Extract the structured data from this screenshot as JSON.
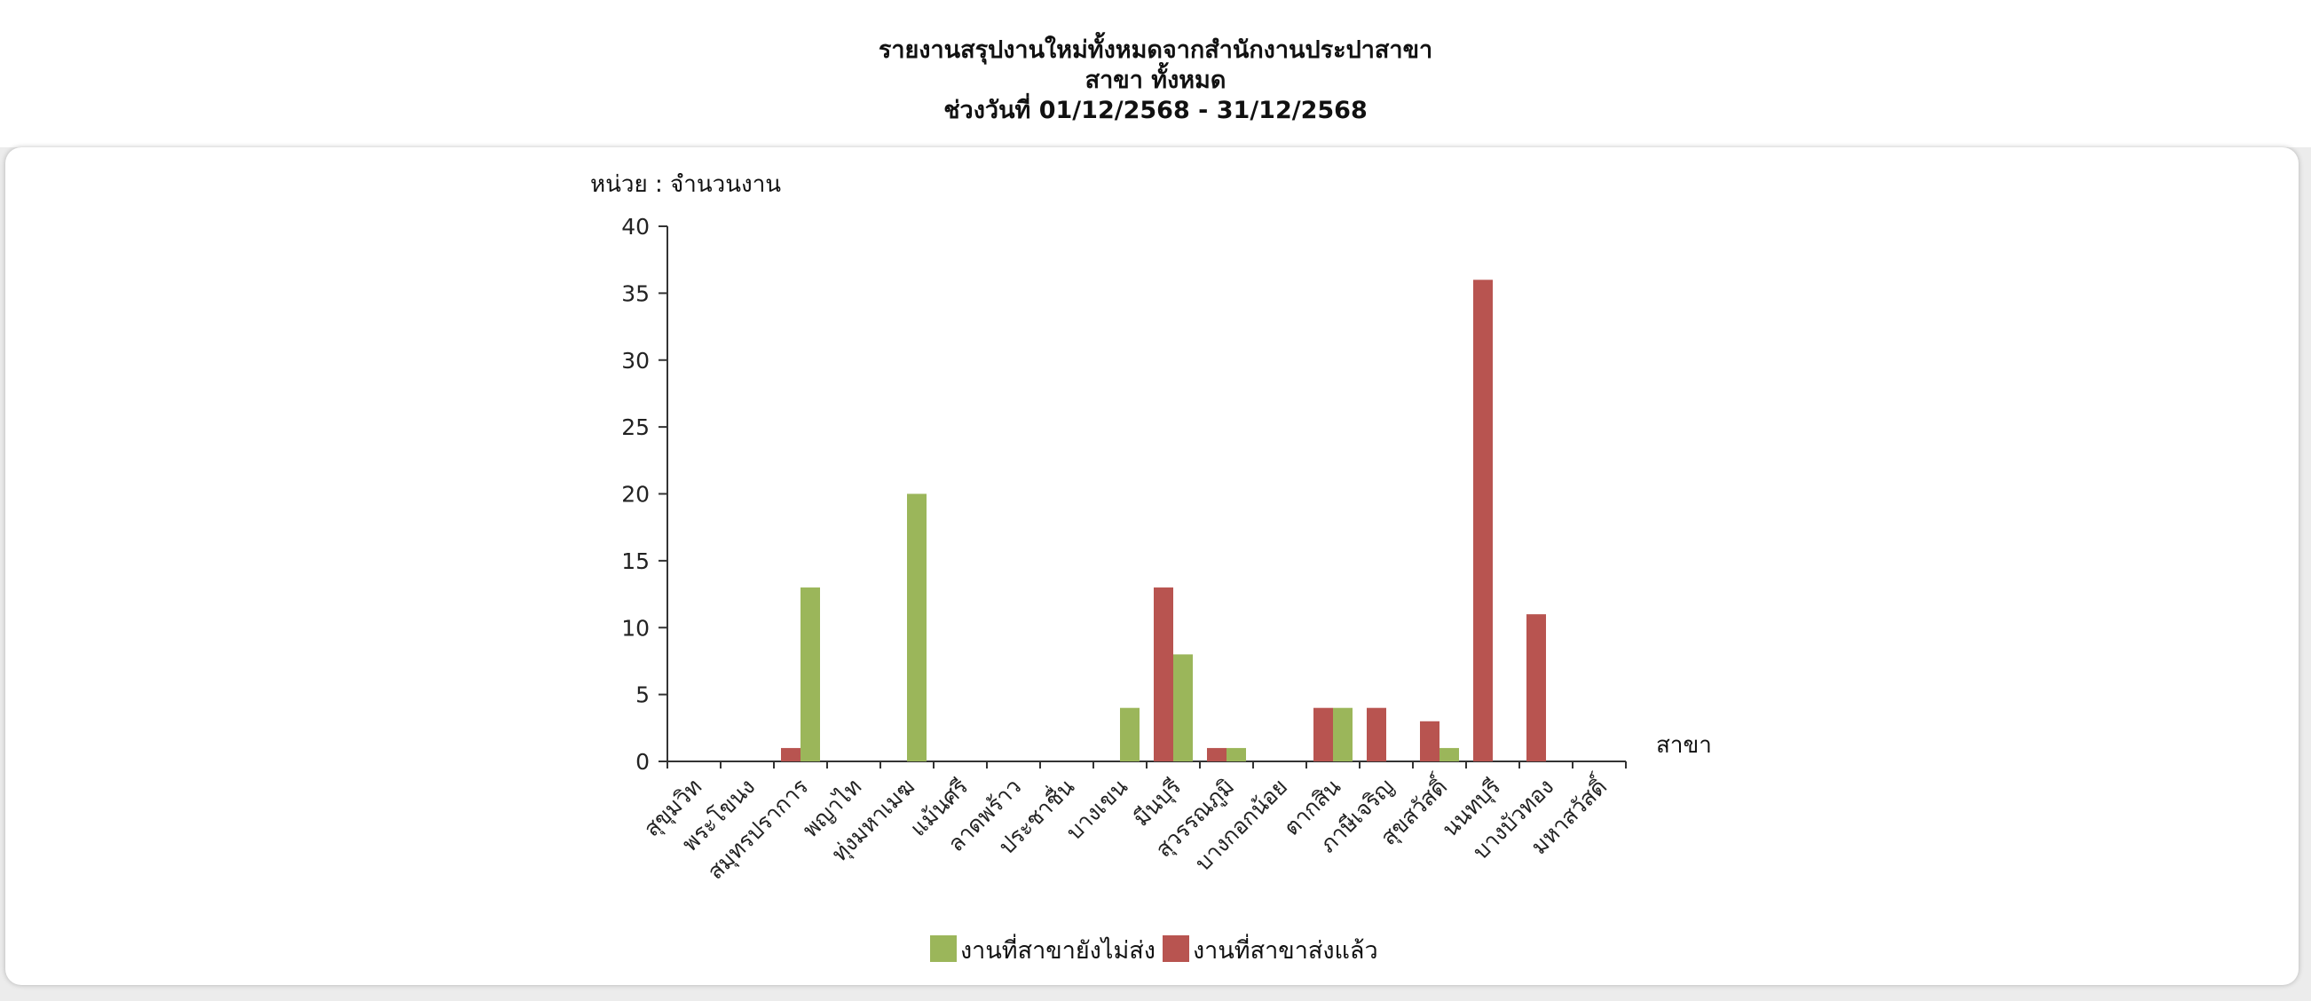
{
  "report": {
    "title": "รายงานสรุปงานใหม่ทั้งหมดจากสำนักงานประปาสาขา",
    "branch_line": "สาขา ทั้งหมด",
    "date_range": "ช่วงวันที่ 01/12/2568 - 31/12/2568"
  },
  "chart_data": {
    "type": "bar",
    "unit_label": "หน่วย : จำนวนงาน",
    "xlabel": "สาขา",
    "ylim": [
      0,
      40
    ],
    "yticks": [
      0,
      5,
      10,
      15,
      20,
      25,
      30,
      35,
      40
    ],
    "categories": [
      "สุขุมวิท",
      "พระโขนง",
      "สมุทรปราการ",
      "พญาไท",
      "ทุ่งมหาเมฆ",
      "แม้นศรี",
      "ลาดพร้าว",
      "ประชาชื่น",
      "บางเขน",
      "มีนบุรี",
      "สุวรรณภูมิ",
      "บางกอกน้อย",
      "ตากสิน",
      "ภาษีเจริญ",
      "สุขสวัสดิ์",
      "นนทบุรี",
      "บางบัวทอง",
      "มหาสวัสดิ์"
    ],
    "series": [
      {
        "name": "งานที่สาขาส่งแล้ว",
        "color": "#b85450",
        "values": [
          0,
          0,
          1,
          0,
          0,
          0,
          0,
          0,
          0,
          13,
          1,
          0,
          4,
          4,
          3,
          36,
          11,
          0
        ]
      },
      {
        "name": "งานที่สาขายังไม่ส่ง",
        "color": "#9bb65a",
        "values": [
          0,
          0,
          13,
          0,
          20,
          0,
          0,
          0,
          4,
          8,
          1,
          0,
          4,
          0,
          1,
          0,
          0,
          0
        ]
      }
    ],
    "legend_order": [
      "งานที่สาขายังไม่ส่ง",
      "งานที่สาขาส่งแล้ว"
    ],
    "legend_position": "bottom",
    "grid": false
  }
}
